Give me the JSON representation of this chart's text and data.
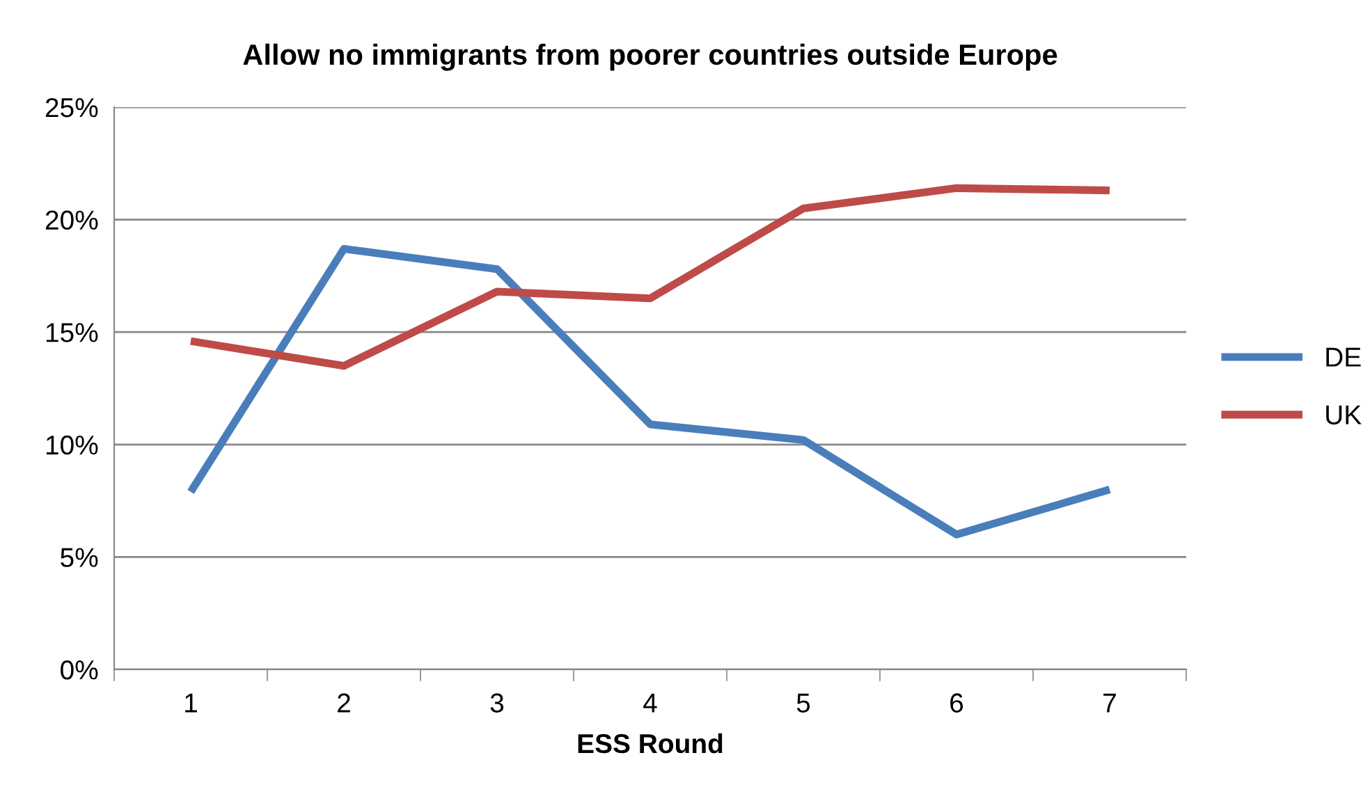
{
  "chart_data": {
    "type": "line",
    "title": "Allow no immigrants from poorer countries outside Europe",
    "xlabel": "ESS Round",
    "categories": [
      "1",
      "2",
      "3",
      "4",
      "5",
      "6",
      "7"
    ],
    "series": [
      {
        "name": "DE",
        "color": "#4a7ebb",
        "values": [
          7.9,
          18.7,
          17.8,
          10.9,
          10.2,
          6.0,
          8.0
        ]
      },
      {
        "name": "UK",
        "color": "#be4b48",
        "values": [
          14.6,
          13.5,
          16.8,
          16.5,
          20.5,
          21.4,
          21.3
        ]
      }
    ],
    "ylim": [
      0,
      25
    ],
    "yticks": [
      {
        "value": 0,
        "label": "0%"
      },
      {
        "value": 5,
        "label": "5%"
      },
      {
        "value": 10,
        "label": "10%"
      },
      {
        "value": 15,
        "label": "15%"
      },
      {
        "value": 20,
        "label": "20%"
      },
      {
        "value": 25,
        "label": "25%"
      }
    ],
    "grid": "y",
    "legend": "right",
    "marker": "none",
    "line_style": "solid"
  }
}
